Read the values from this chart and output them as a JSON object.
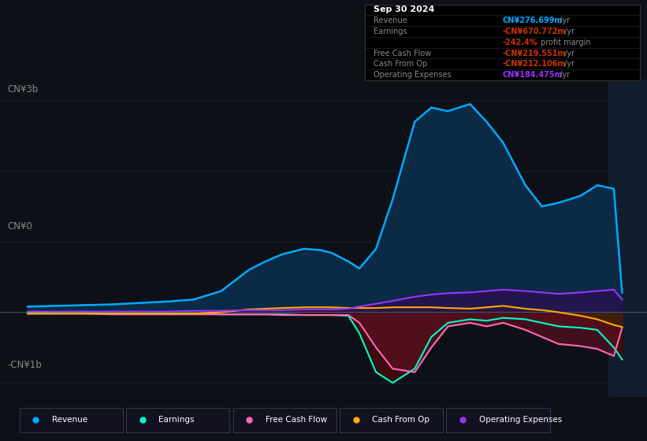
{
  "background_color": "#0d1117",
  "chart_bg": "#0d1117",
  "ylabel_top": "CN¥3b",
  "ylabel_zero": "CN¥0",
  "ylabel_bot": "-CN¥1b",
  "years": [
    2014.0,
    2014.5,
    2015.0,
    2015.5,
    2016.0,
    2016.5,
    2017.0,
    2017.5,
    2018.0,
    2018.3,
    2018.6,
    2019.0,
    2019.3,
    2019.5,
    2019.8,
    2020.0,
    2020.3,
    2020.6,
    2021.0,
    2021.3,
    2021.6,
    2022.0,
    2022.3,
    2022.6,
    2023.0,
    2023.3,
    2023.6,
    2024.0,
    2024.3,
    2024.6,
    2024.75
  ],
  "revenue": [
    0.08,
    0.09,
    0.1,
    0.11,
    0.13,
    0.15,
    0.18,
    0.3,
    0.6,
    0.72,
    0.82,
    0.9,
    0.88,
    0.84,
    0.72,
    0.62,
    0.9,
    1.6,
    2.7,
    2.9,
    2.85,
    2.95,
    2.7,
    2.4,
    1.8,
    1.5,
    1.55,
    1.65,
    1.8,
    1.75,
    0.28
  ],
  "earnings": [
    0.0,
    -0.01,
    -0.01,
    -0.02,
    -0.02,
    -0.02,
    -0.02,
    -0.03,
    -0.03,
    -0.03,
    -0.03,
    -0.04,
    -0.04,
    -0.04,
    -0.05,
    -0.3,
    -0.85,
    -1.0,
    -0.8,
    -0.35,
    -0.15,
    -0.1,
    -0.12,
    -0.08,
    -0.1,
    -0.15,
    -0.2,
    -0.22,
    -0.25,
    -0.5,
    -0.67
  ],
  "free_cash_flow": [
    -0.02,
    -0.02,
    -0.02,
    -0.03,
    -0.03,
    -0.03,
    -0.03,
    -0.03,
    -0.03,
    -0.03,
    -0.04,
    -0.04,
    -0.04,
    -0.04,
    -0.04,
    -0.15,
    -0.5,
    -0.8,
    -0.85,
    -0.5,
    -0.2,
    -0.15,
    -0.2,
    -0.15,
    -0.25,
    -0.35,
    -0.45,
    -0.48,
    -0.52,
    -0.62,
    -0.22
  ],
  "cash_from_op": [
    -0.02,
    -0.02,
    -0.02,
    -0.02,
    -0.02,
    -0.02,
    -0.02,
    0.0,
    0.04,
    0.05,
    0.06,
    0.07,
    0.07,
    0.07,
    0.06,
    0.06,
    0.06,
    0.07,
    0.07,
    0.07,
    0.06,
    0.05,
    0.07,
    0.09,
    0.05,
    0.03,
    0.0,
    -0.05,
    -0.1,
    -0.18,
    -0.21
  ],
  "operating_expenses": [
    0.01,
    0.01,
    0.01,
    0.01,
    0.01,
    0.01,
    0.02,
    0.02,
    0.03,
    0.03,
    0.03,
    0.04,
    0.04,
    0.04,
    0.05,
    0.08,
    0.12,
    0.16,
    0.22,
    0.25,
    0.27,
    0.28,
    0.3,
    0.32,
    0.3,
    0.28,
    0.26,
    0.28,
    0.3,
    0.32,
    0.18
  ],
  "revenue_color": "#00aaff",
  "earnings_color": "#00ffcc",
  "free_cash_flow_color": "#ff69b4",
  "cash_from_op_color": "#ffaa00",
  "operating_expenses_color": "#9933ff",
  "tooltip_title": "Sep 30 2024",
  "tooltip_rows": [
    {
      "label": "Revenue",
      "value": "CN¥276.699m",
      "color": "#00aaff",
      "extra": null
    },
    {
      "label": "Earnings",
      "value": "-CN¥670.772m",
      "color": "#cc3300",
      "extra": "-242.4% profit margin"
    },
    {
      "label": "Free Cash Flow",
      "value": "-CN¥219.551m",
      "color": "#cc3300",
      "extra": null
    },
    {
      "label": "Cash From Op",
      "value": "-CN¥212.106m",
      "color": "#cc3300",
      "extra": null
    },
    {
      "label": "Operating Expenses",
      "value": "CN¥184.475m",
      "color": "#9933ff",
      "extra": null
    }
  ],
  "legend_items": [
    {
      "label": "Revenue",
      "color": "#00aaff"
    },
    {
      "label": "Earnings",
      "color": "#00ffcc"
    },
    {
      "label": "Free Cash Flow",
      "color": "#ff69b4"
    },
    {
      "label": "Cash From Op",
      "color": "#ffaa00"
    },
    {
      "label": "Operating Expenses",
      "color": "#9933ff"
    }
  ],
  "xlim": [
    2013.5,
    2025.2
  ],
  "ylim": [
    -1.2,
    3.3
  ],
  "xticks": [
    2014,
    2015,
    2016,
    2017,
    2018,
    2019,
    2020,
    2021,
    2022,
    2023,
    2024
  ],
  "grid_color": "#1a2535",
  "text_color": "#888888",
  "highlight_x": 2024.75,
  "highlight_bg": "#111d2b"
}
